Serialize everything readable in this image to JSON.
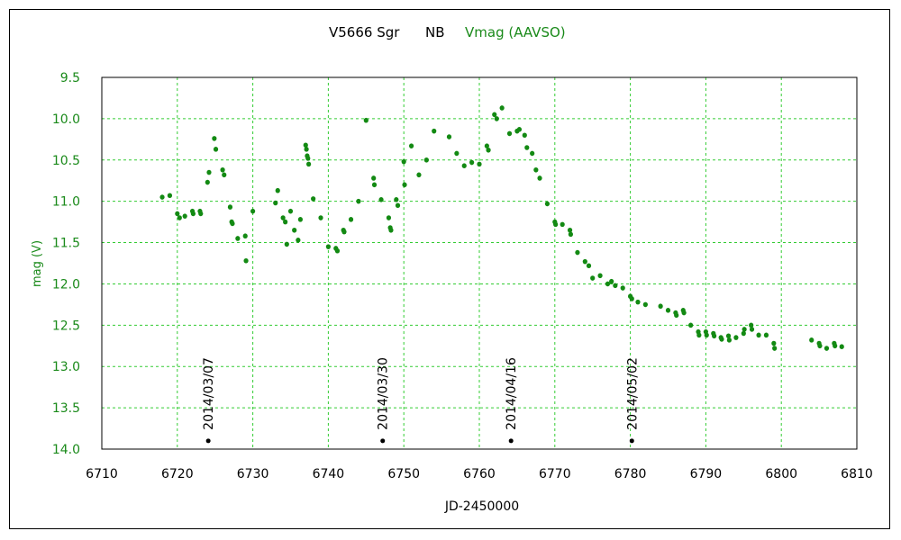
{
  "chart_data": {
    "type": "scatter",
    "title": {
      "star": "V5666 Sgr",
      "type": "NB",
      "series": "Vmag (AAVSO)"
    },
    "xlabel": "JD-2450000",
    "ylabel": "mag (V)",
    "xlim": [
      6710,
      6810
    ],
    "ylim": [
      9.5,
      14.0
    ],
    "y_inverted": true,
    "xticks": [
      6710,
      6720,
      6730,
      6740,
      6750,
      6760,
      6770,
      6780,
      6790,
      6800,
      6810
    ],
    "yticks": [
      "9.5",
      "10.0",
      "10.5",
      "11.0",
      "11.5",
      "12.0",
      "12.5",
      "13.0",
      "13.5",
      "14.0"
    ],
    "grid": true,
    "colors": {
      "data": "#138a13",
      "grid": "#33cc33",
      "label": "#1a8a1a",
      "annotation": "#000000"
    },
    "annotations": [
      {
        "label": "2014/03/07",
        "x": 6724.1,
        "y": 13.9
      },
      {
        "label": "2014/03/30",
        "x": 6747.2,
        "y": 13.9
      },
      {
        "label": "2014/04/16",
        "x": 6764.2,
        "y": 13.9
      },
      {
        "label": "2014/05/02",
        "x": 6780.2,
        "y": 13.9
      }
    ],
    "series": [
      {
        "x": [
          6718.0,
          6719.0,
          6720.0,
          6720.3,
          6721.0,
          6722.0,
          6722.1,
          6723.0,
          6723.1,
          6724.0,
          6724.2,
          6724.9,
          6725.1,
          6726.0,
          6726.2,
          6727.0,
          6727.2,
          6727.3,
          6728.0,
          6729.0,
          6729.1,
          6730.0,
          6733.0,
          6733.3,
          6734.0,
          6734.3,
          6734.5,
          6735.0,
          6735.5,
          6736.0,
          6736.3,
          6737.0,
          6737.1,
          6737.2,
          6737.3,
          6737.4,
          6738.0,
          6739.0,
          6740.0,
          6741.0,
          6741.2,
          6742.0,
          6742.1,
          6743.0,
          6744.0,
          6745.0,
          6746.0,
          6746.1,
          6747.0,
          6748.0,
          6748.2,
          6748.3,
          6749.0,
          6749.2,
          6750.0,
          6750.1,
          6751.0,
          6752.0,
          6753.0,
          6754.0,
          6756.0,
          6757.0,
          6758.0,
          6759.0,
          6760.0,
          6761.0,
          6761.2,
          6762.0,
          6762.3,
          6763.0,
          6764.0,
          6765.0,
          6765.3,
          6766.0,
          6766.3,
          6767.0,
          6767.5,
          6768.0,
          6769.0,
          6770.0,
          6770.1,
          6771.0,
          6772.0,
          6772.1,
          6773.0,
          6774.0,
          6774.5,
          6775.0,
          6776.0,
          6777.0,
          6777.5,
          6778.0,
          6779.0,
          6780.0,
          6780.2,
          6781.0,
          6782.0,
          6784.0,
          6785.0,
          6786.0,
          6786.1,
          6787.0,
          6787.1,
          6788.0,
          6789.0,
          6789.1,
          6790.0,
          6790.1,
          6791.0,
          6791.1,
          6792.0,
          6792.1,
          6793.0,
          6793.1,
          6794.0,
          6795.0,
          6795.1,
          6796.0,
          6796.1,
          6797.0,
          6798.0,
          6799.0,
          6799.1,
          6804.0,
          6805.0,
          6805.1,
          6806.0,
          6807.0,
          6807.1,
          6808.0
        ],
        "y": [
          10.95,
          10.93,
          11.15,
          11.2,
          11.18,
          11.12,
          11.15,
          11.12,
          11.15,
          10.77,
          10.65,
          10.24,
          10.37,
          10.62,
          10.68,
          11.07,
          11.25,
          11.27,
          11.45,
          11.42,
          11.72,
          11.12,
          11.02,
          10.87,
          11.2,
          11.25,
          11.52,
          11.12,
          11.35,
          11.47,
          11.22,
          10.32,
          10.37,
          10.45,
          10.48,
          10.55,
          10.97,
          11.2,
          11.55,
          11.57,
          11.6,
          11.35,
          11.37,
          11.22,
          11.0,
          10.02,
          10.72,
          10.8,
          10.98,
          11.2,
          11.32,
          11.35,
          10.98,
          11.05,
          10.52,
          10.8,
          10.33,
          10.68,
          10.5,
          10.15,
          10.22,
          10.42,
          10.57,
          10.53,
          10.55,
          10.33,
          10.38,
          9.95,
          10.0,
          9.87,
          10.18,
          10.15,
          10.13,
          10.2,
          10.35,
          10.42,
          10.62,
          10.72,
          11.03,
          11.25,
          11.28,
          11.28,
          11.35,
          11.4,
          11.62,
          11.73,
          11.78,
          11.93,
          11.9,
          12.0,
          11.97,
          12.02,
          12.05,
          12.15,
          12.18,
          12.22,
          12.25,
          12.27,
          12.32,
          12.35,
          12.38,
          12.32,
          12.35,
          12.5,
          12.58,
          12.62,
          12.58,
          12.62,
          12.6,
          12.63,
          12.65,
          12.67,
          12.63,
          12.68,
          12.65,
          12.6,
          12.55,
          12.5,
          12.55,
          12.62,
          12.62,
          12.72,
          12.78,
          12.68,
          12.72,
          12.75,
          12.78,
          12.72,
          12.75,
          12.76
        ]
      }
    ]
  }
}
